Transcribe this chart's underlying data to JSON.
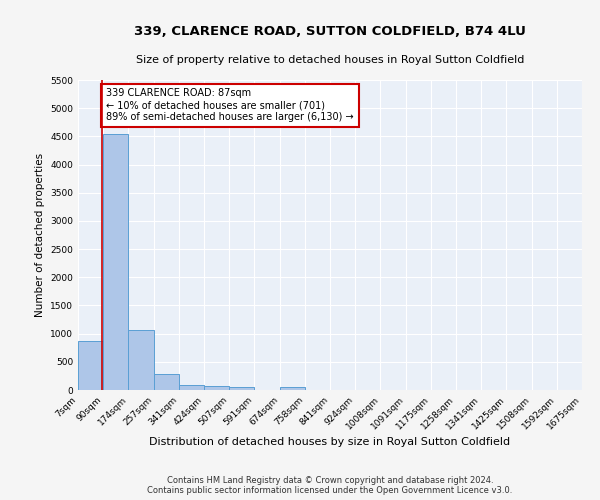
{
  "title": "339, CLARENCE ROAD, SUTTON COLDFIELD, B74 4LU",
  "subtitle": "Size of property relative to detached houses in Royal Sutton Coldfield",
  "xlabel": "Distribution of detached houses by size in Royal Sutton Coldfield",
  "ylabel": "Number of detached properties",
  "footer_line1": "Contains HM Land Registry data © Crown copyright and database right 2024.",
  "footer_line2": "Contains public sector information licensed under the Open Government Licence v3.0.",
  "annotation_line1": "339 CLARENCE ROAD: 87sqm",
  "annotation_line2": "← 10% of detached houses are smaller (701)",
  "annotation_line3": "89% of semi-detached houses are larger (6,130) →",
  "property_size": 87,
  "bin_edges": [
    7,
    90,
    174,
    257,
    341,
    424,
    507,
    591,
    674,
    758,
    841,
    924,
    1008,
    1091,
    1175,
    1258,
    1341,
    1425,
    1508,
    1592,
    1675
  ],
  "bin_counts": [
    870,
    4550,
    1060,
    285,
    85,
    75,
    55,
    0,
    55,
    0,
    0,
    0,
    0,
    0,
    0,
    0,
    0,
    0,
    0,
    0
  ],
  "bar_color": "#aec6e8",
  "bar_edge_color": "#5a9fd4",
  "vline_color": "#cc0000",
  "annotation_box_color": "#cc0000",
  "background_color": "#eaf0f8",
  "grid_color": "#ffffff",
  "fig_bg_color": "#f5f5f5",
  "ylim": [
    0,
    5500
  ],
  "yticks": [
    0,
    500,
    1000,
    1500,
    2000,
    2500,
    3000,
    3500,
    4000,
    4500,
    5000,
    5500
  ]
}
